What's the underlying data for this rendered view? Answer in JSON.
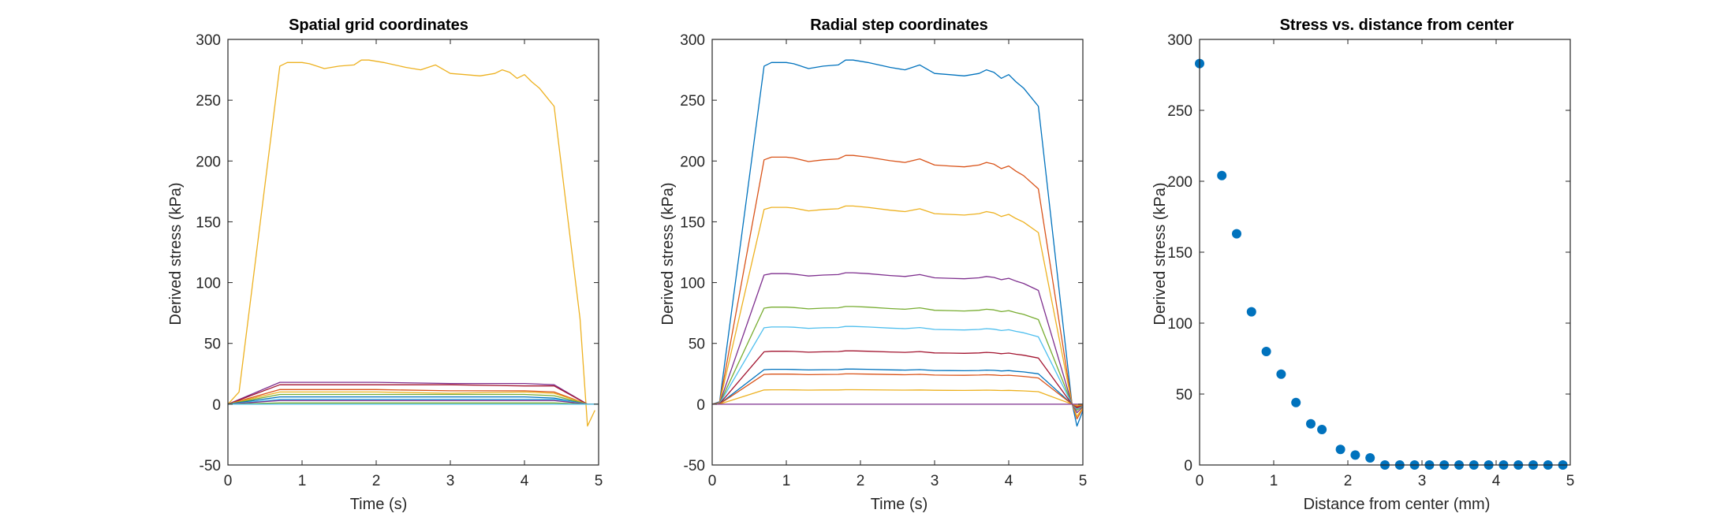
{
  "chart_data": [
    {
      "type": "line",
      "title": "Spatial grid coordinates",
      "xlabel": "Time (s)",
      "ylabel": "Derived stress (kPa)",
      "xlim": [
        0,
        5
      ],
      "ylim": [
        -50,
        300
      ],
      "xticks": [
        "0",
        "1",
        "2",
        "3",
        "4",
        "5"
      ],
      "yticks": [
        "-50",
        "0",
        "50",
        "100",
        "150",
        "200",
        "250",
        "300"
      ],
      "grid": false,
      "legend": "none",
      "series": [
        {
          "color": "#EDB120",
          "x": [
            0,
            0.15,
            0.7,
            0.8,
            0.9,
            1.0,
            1.1,
            1.3,
            1.5,
            1.7,
            1.8,
            1.9,
            2.1,
            2.4,
            2.6,
            2.8,
            3.0,
            3.2,
            3.4,
            3.6,
            3.7,
            3.8,
            3.9,
            4.0,
            4.1,
            4.2,
            4.4,
            4.75,
            4.85,
            4.95
          ],
          "y": [
            0,
            10,
            278,
            281,
            281,
            281,
            280,
            276,
            278,
            279,
            283,
            283,
            281,
            277,
            275,
            279,
            272,
            271,
            270,
            272,
            275,
            273,
            268,
            271,
            265,
            260,
            245,
            70,
            -18,
            -5
          ]
        },
        {
          "color": "#7E2F8E",
          "x": [
            0,
            0.7,
            2.0,
            3.0,
            4.0,
            4.4,
            4.85,
            5.0
          ],
          "y": [
            0,
            18,
            18,
            17,
            17,
            16,
            0,
            0
          ]
        },
        {
          "color": "#A2142F",
          "x": [
            0,
            0.7,
            2.0,
            3.0,
            4.0,
            4.4,
            4.85,
            5.0
          ],
          "y": [
            0,
            16,
            16,
            16,
            15,
            15,
            0,
            0
          ]
        },
        {
          "color": "#D95319",
          "x": [
            0,
            0.7,
            2.0,
            3.0,
            4.0,
            4.4,
            4.85,
            5.0
          ],
          "y": [
            0,
            12,
            12,
            11,
            11,
            10,
            0,
            0
          ]
        },
        {
          "color": "#EDB120",
          "x": [
            0,
            0.7,
            2.0,
            3.0,
            4.0,
            4.4,
            4.85,
            5.0
          ],
          "y": [
            0,
            10,
            10,
            9,
            10,
            9,
            0,
            0
          ]
        },
        {
          "color": "#77AC30",
          "x": [
            0,
            0.7,
            2.0,
            3.0,
            4.0,
            4.4,
            4.85,
            5.0
          ],
          "y": [
            0,
            8,
            8,
            8,
            8,
            7,
            0,
            0
          ]
        },
        {
          "color": "#0072BD",
          "x": [
            0,
            0.7,
            2.0,
            3.0,
            4.0,
            4.4,
            4.85,
            5.0
          ],
          "y": [
            0,
            6,
            6,
            6,
            6,
            5,
            0,
            0
          ]
        },
        {
          "color": "#4DBEEE",
          "x": [
            0,
            0.7,
            2.0,
            3.0,
            4.0,
            4.4,
            4.85,
            5.0
          ],
          "y": [
            0,
            4,
            4,
            4,
            4,
            4,
            0,
            0
          ]
        },
        {
          "color": "#7E2F8E",
          "x": [
            0,
            0.7,
            2.0,
            3.0,
            4.0,
            4.4,
            4.85,
            5.0
          ],
          "y": [
            0,
            3,
            3,
            3,
            3,
            3,
            0,
            0
          ]
        },
        {
          "color": "#77AC30",
          "x": [
            0,
            0.7,
            2.0,
            3.0,
            4.0,
            4.4,
            4.85,
            5.0
          ],
          "y": [
            0,
            1,
            1,
            1,
            1,
            1,
            0,
            0
          ]
        },
        {
          "color": "#4DBEEE",
          "x": [
            0,
            5.0
          ],
          "y": [
            0,
            0
          ]
        }
      ]
    },
    {
      "type": "line",
      "title": "Radial step coordinates",
      "xlabel": "Time (s)",
      "ylabel": "Derived stress (kPa)",
      "xlim": [
        0,
        5
      ],
      "ylim": [
        -50,
        300
      ],
      "xticks": [
        "0",
        "1",
        "2",
        "3",
        "4",
        "5"
      ],
      "yticks": [
        "-50",
        "0",
        "50",
        "100",
        "150",
        "200",
        "250",
        "300"
      ],
      "grid": false,
      "legend": "none",
      "series": [
        {
          "color": "#0072BD",
          "scale": 1.0,
          "undershoot": -18
        },
        {
          "color": "#D95319",
          "scale": 0.723,
          "undershoot": -12
        },
        {
          "color": "#EDB120",
          "scale": 0.576,
          "undershoot": -10
        },
        {
          "color": "#7E2F8E",
          "scale": 0.382,
          "undershoot": -7
        },
        {
          "color": "#77AC30",
          "scale": 0.284,
          "undershoot": -5
        },
        {
          "color": "#4DBEEE",
          "scale": 0.226,
          "undershoot": -4
        },
        {
          "color": "#A2142F",
          "scale": 0.155,
          "undershoot": -3
        },
        {
          "color": "#0072BD",
          "scale": 0.102,
          "undershoot": -2
        },
        {
          "color": "#D95319",
          "scale": 0.088,
          "undershoot": -2
        },
        {
          "color": "#EDB120",
          "scale": 0.042,
          "undershoot": -1
        },
        {
          "color": "#7E2F8E",
          "scale": 0.0,
          "undershoot": 0
        }
      ],
      "base_profile": {
        "x": [
          0,
          0.1,
          0.7,
          0.8,
          0.9,
          1.0,
          1.1,
          1.3,
          1.5,
          1.7,
          1.8,
          1.9,
          2.1,
          2.4,
          2.6,
          2.8,
          3.0,
          3.2,
          3.4,
          3.6,
          3.7,
          3.8,
          3.9,
          4.0,
          4.1,
          4.2,
          4.4,
          4.85
        ],
        "y": [
          0,
          2,
          278,
          281,
          281,
          281,
          280,
          276,
          278,
          279,
          283,
          283,
          281,
          277,
          275,
          279,
          272,
          271,
          270,
          272,
          275,
          273,
          268,
          271,
          265,
          260,
          245,
          2
        ]
      }
    },
    {
      "type": "scatter",
      "title": "Stress vs. distance from center",
      "xlabel": "Distance from center (mm)",
      "ylabel": "Derived stress (kPa)",
      "xlim": [
        0,
        5
      ],
      "ylim": [
        0,
        300
      ],
      "xticks": [
        "0",
        "1",
        "2",
        "3",
        "4",
        "5"
      ],
      "yticks": [
        "0",
        "50",
        "100",
        "150",
        "200",
        "250",
        "300"
      ],
      "grid": false,
      "legend": "none",
      "color": "#0072BD",
      "x": [
        0,
        0.3,
        0.5,
        0.7,
        0.9,
        1.1,
        1.3,
        1.5,
        1.65,
        1.9,
        2.1,
        2.3,
        2.5,
        2.7,
        2.9,
        3.1,
        3.3,
        3.5,
        3.7,
        3.9,
        4.1,
        4.3,
        4.5,
        4.7,
        4.9
      ],
      "y": [
        283,
        204,
        163,
        108,
        80,
        64,
        44,
        29,
        25,
        11,
        7,
        5,
        0,
        0,
        0,
        0,
        0,
        0,
        0,
        0,
        0,
        0,
        0,
        0,
        0
      ]
    }
  ]
}
